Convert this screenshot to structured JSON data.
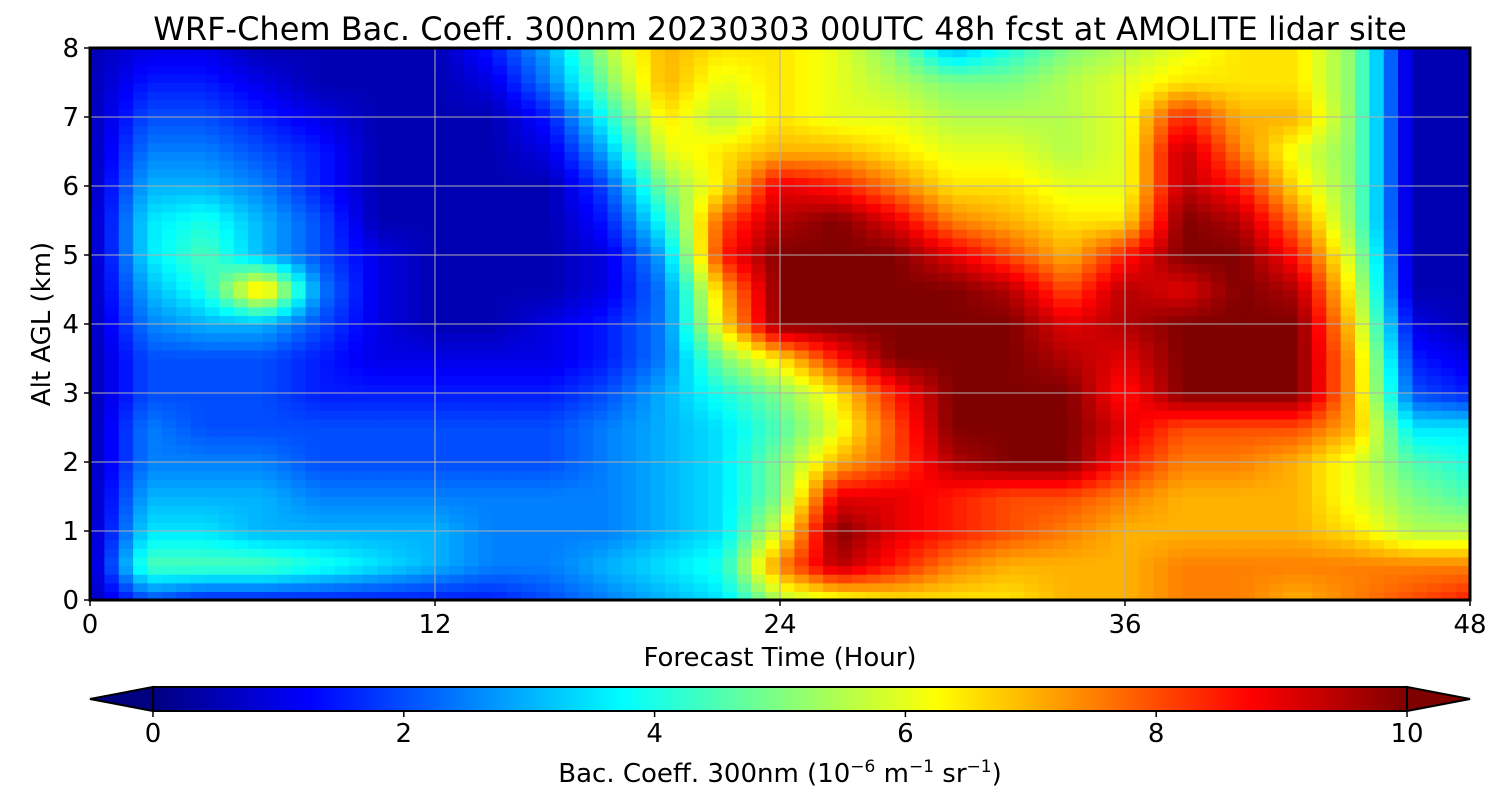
{
  "chart_data": {
    "type": "heatmap",
    "title": "WRF-Chem Bac. Coeff. 300nm  20230303 00UTC 48h fcst at AMOLITE lidar site",
    "xlabel": "Forecast Time (Hour)",
    "ylabel": "Alt AGL (km)",
    "xlim": [
      0,
      48
    ],
    "ylim": [
      0,
      8
    ],
    "x_ticks": [
      "0",
      "12",
      "24",
      "36",
      "48"
    ],
    "x_tick_values": [
      0,
      12,
      24,
      36,
      48
    ],
    "y_ticks": [
      "0",
      "1",
      "2",
      "3",
      "4",
      "5",
      "6",
      "7",
      "8"
    ],
    "y_tick_values": [
      0,
      1,
      2,
      3,
      4,
      5,
      6,
      7,
      8
    ],
    "grid": true,
    "colormap": "jet",
    "colorbar": {
      "label_main": "Bac. Coeff. 300nm  (10",
      "label_exp1": "−6",
      "label_mid": " m",
      "label_exp2": "−1",
      "label_end": " sr",
      "label_exp3": "−1",
      "label_close": ")",
      "min": 0,
      "max": 10,
      "extend": "both",
      "ticks": [
        "0",
        "2",
        "4",
        "6",
        "8",
        "10"
      ],
      "tick_values": [
        0,
        2,
        4,
        6,
        8,
        10
      ]
    },
    "x": [
      0,
      2,
      4,
      6,
      8,
      10,
      12,
      14,
      16,
      18,
      20,
      22,
      24,
      26,
      28,
      30,
      32,
      34,
      36,
      38,
      40,
      42,
      44,
      46,
      48
    ],
    "y": [
      0,
      0.5,
      1,
      1.5,
      2,
      2.5,
      3,
      3.5,
      4,
      4.5,
      5,
      5.5,
      6,
      6.5,
      7,
      7.5,
      8
    ],
    "z": [
      [
        0.5,
        2.0,
        1.5,
        1.5,
        1.5,
        1.5,
        1.5,
        1.5,
        2.0,
        2.5,
        3.0,
        3.5,
        5.5,
        6.0,
        6.5,
        6.5,
        6.5,
        7.0,
        7.0,
        7.5,
        7.5,
        7.0,
        7.5,
        8.0,
        8.5
      ],
      [
        0.5,
        4.5,
        4.5,
        4.5,
        4.0,
        3.5,
        3.0,
        2.5,
        2.5,
        3.0,
        3.5,
        4.0,
        7.5,
        9.5,
        8.5,
        7.5,
        7.0,
        7.0,
        7.0,
        7.5,
        7.5,
        7.5,
        7.5,
        7.5,
        7.5
      ],
      [
        0.5,
        3.5,
        3.5,
        3.0,
        3.0,
        3.0,
        3.0,
        2.5,
        2.5,
        2.5,
        3.0,
        3.5,
        6.0,
        10.0,
        9.0,
        8.5,
        8.0,
        7.5,
        7.0,
        7.0,
        7.0,
        7.0,
        6.5,
        5.5,
        5.5
      ],
      [
        0.5,
        3.0,
        3.0,
        3.0,
        2.5,
        2.5,
        2.5,
        2.5,
        2.5,
        2.5,
        3.0,
        3.5,
        5.0,
        9.0,
        9.0,
        8.5,
        8.0,
        8.0,
        7.5,
        7.0,
        7.0,
        7.0,
        6.0,
        5.0,
        4.5
      ],
      [
        0.5,
        2.5,
        2.5,
        2.5,
        2.0,
        2.0,
        2.0,
        2.0,
        2.0,
        2.5,
        3.0,
        3.5,
        5.0,
        7.0,
        8.0,
        9.5,
        10.0,
        10.0,
        8.5,
        7.5,
        7.5,
        7.0,
        6.0,
        4.5,
        4.0
      ],
      [
        0.5,
        2.5,
        2.0,
        2.0,
        2.0,
        2.0,
        2.0,
        2.0,
        2.0,
        2.5,
        3.0,
        3.5,
        4.5,
        6.0,
        8.0,
        10.0,
        10.0,
        10.0,
        9.0,
        8.0,
        8.0,
        8.0,
        7.0,
        3.5,
        3.5
      ],
      [
        0.5,
        2.0,
        2.0,
        2.0,
        1.5,
        1.5,
        1.5,
        1.5,
        1.5,
        2.0,
        3.0,
        4.0,
        5.0,
        6.5,
        8.5,
        10.0,
        10.0,
        10.0,
        8.5,
        10.0,
        10.0,
        10.0,
        7.0,
        2.0,
        1.5
      ],
      [
        0.5,
        2.0,
        2.0,
        2.0,
        1.5,
        1.0,
        1.0,
        1.0,
        1.0,
        1.5,
        2.5,
        5.0,
        6.5,
        8.5,
        10.0,
        10.0,
        10.0,
        9.5,
        9.0,
        10.0,
        10.0,
        10.0,
        7.0,
        1.5,
        1.0
      ],
      [
        0.5,
        2.5,
        3.0,
        3.0,
        2.0,
        1.0,
        0.5,
        0.5,
        1.0,
        1.5,
        2.5,
        6.5,
        10.0,
        10.0,
        10.0,
        10.0,
        10.0,
        9.0,
        9.5,
        10.0,
        10.0,
        10.0,
        6.5,
        1.0,
        0.5
      ],
      [
        0.5,
        3.0,
        4.0,
        7.0,
        2.5,
        1.0,
        0.5,
        0.5,
        0.5,
        1.0,
        2.5,
        7.0,
        10.0,
        10.0,
        10.0,
        10.0,
        9.5,
        8.0,
        9.5,
        9.0,
        10.0,
        9.5,
        6.0,
        0.5,
        0.5
      ],
      [
        0.5,
        3.5,
        4.5,
        3.0,
        2.0,
        1.0,
        0.5,
        0.5,
        0.5,
        1.0,
        3.0,
        8.5,
        10.0,
        10.0,
        10.0,
        9.0,
        8.0,
        7.0,
        8.5,
        10.0,
        10.0,
        8.5,
        5.5,
        0.5,
        0.5
      ],
      [
        0.5,
        3.5,
        4.0,
        3.0,
        2.0,
        0.5,
        0.5,
        0.5,
        0.5,
        1.5,
        4.0,
        8.0,
        9.5,
        10.0,
        9.0,
        7.5,
        7.0,
        6.5,
        6.5,
        10.0,
        9.5,
        7.5,
        5.0,
        0.5,
        0.5
      ],
      [
        0.5,
        3.0,
        3.0,
        2.5,
        1.5,
        0.5,
        0.5,
        0.5,
        0.5,
        2.0,
        5.0,
        6.5,
        9.0,
        8.5,
        7.5,
        6.5,
        6.5,
        6.0,
        6.0,
        9.5,
        8.5,
        6.5,
        5.0,
        0.5,
        0.5
      ],
      [
        0.5,
        2.5,
        2.5,
        2.0,
        1.5,
        0.5,
        0.5,
        0.5,
        1.0,
        3.0,
        6.0,
        6.5,
        7.0,
        7.0,
        6.5,
        6.0,
        6.0,
        5.5,
        6.0,
        9.5,
        7.5,
        6.0,
        5.0,
        0.5,
        0.5
      ],
      [
        0.5,
        2.0,
        2.0,
        1.5,
        1.0,
        0.5,
        0.5,
        0.5,
        1.5,
        4.0,
        6.5,
        5.5,
        6.5,
        6.0,
        6.0,
        5.5,
        5.5,
        5.5,
        6.0,
        8.5,
        7.0,
        7.0,
        5.0,
        0.5,
        0.5
      ],
      [
        0.5,
        1.5,
        1.5,
        1.0,
        0.5,
        0.5,
        0.5,
        1.0,
        2.5,
        5.0,
        7.0,
        6.0,
        6.5,
        6.0,
        5.5,
        5.0,
        5.0,
        5.5,
        6.0,
        6.5,
        6.5,
        6.5,
        5.0,
        0.5,
        0.5
      ],
      [
        0.5,
        1.0,
        1.0,
        0.5,
        0.5,
        0.5,
        0.5,
        1.5,
        3.0,
        5.5,
        7.0,
        6.5,
        6.5,
        6.0,
        5.0,
        3.0,
        4.0,
        5.0,
        5.5,
        6.0,
        6.5,
        6.5,
        5.0,
        0.5,
        0.5
      ]
    ]
  }
}
